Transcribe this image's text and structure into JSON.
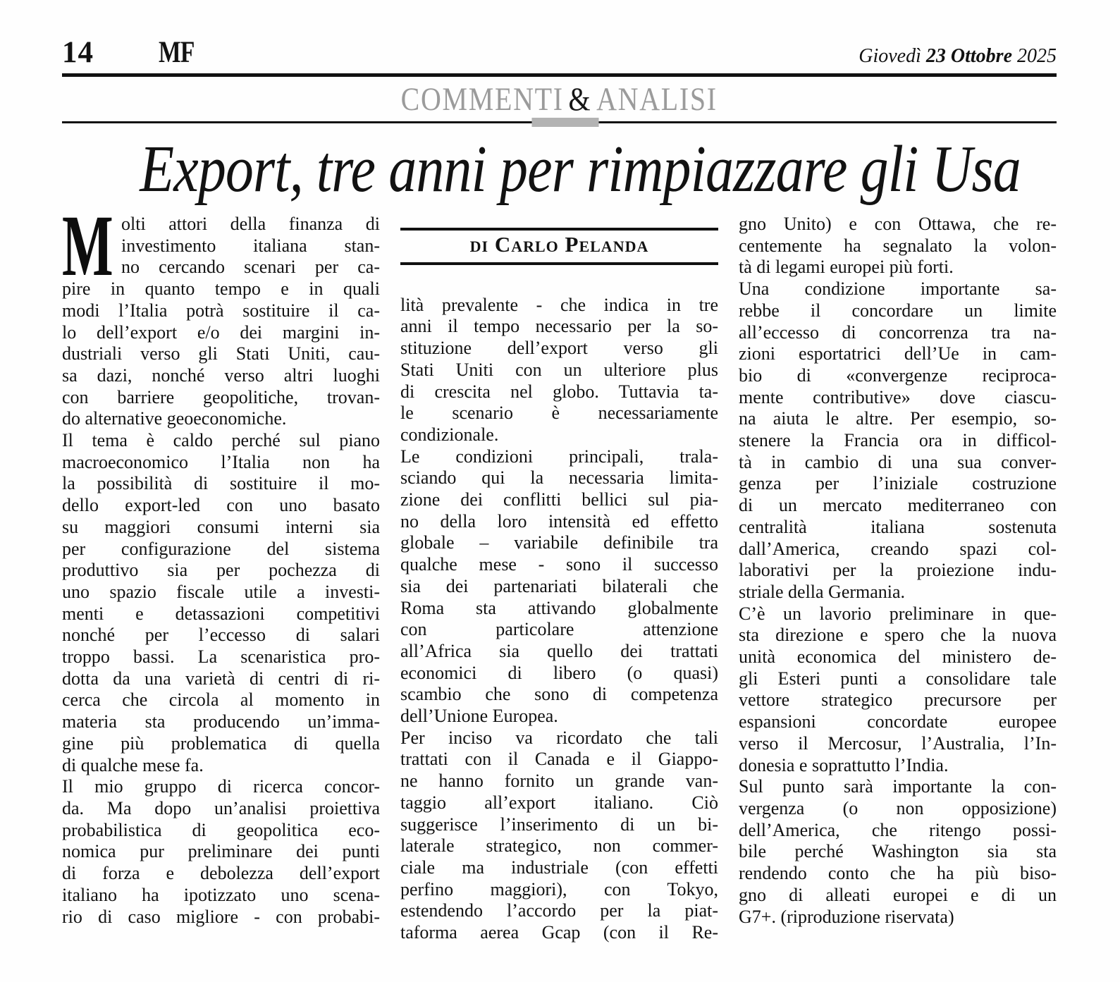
{
  "masthead": {
    "page_number": "14",
    "logo": "MF",
    "date": {
      "weekday": "Giovedì",
      "day_month": "23 Ottobre",
      "year": "2025"
    }
  },
  "section": {
    "left": "COMMENTI",
    "amp": "&",
    "right": "ANALISI"
  },
  "headline": {
    "text": "Export, tre anni per rimpiazzare gli Usa"
  },
  "colors": {
    "section_gray": "#9b9b9b",
    "divider_accent_gray": "#b3b3b3",
    "rule_black": "#111111",
    "text": "#121212",
    "background": "#fefefe"
  },
  "article": {
    "drop_cap": "M",
    "byline": "di Carlo Pelanda",
    "closing": "(riproduzione riservata)",
    "columns": [
      {
        "paragraphs": [
          {
            "end": true,
            "lines": [
              "olti attori della finanza di",
              "investimento italiana stan-",
              "no cercando scenari per ca-",
              "pire in quanto tempo e in quali",
              "modi l’Italia potrà sostituire il ca-",
              "lo dell’export e/o dei margini in-",
              "dustriali verso gli Stati Uniti, cau-",
              "sa dazi, nonché verso altri luoghi",
              "con barriere geopolitiche, trovan-",
              "do alternative geoeconomiche."
            ]
          },
          {
            "end": true,
            "lines": [
              "Il tema è caldo perché sul piano",
              "macroeconomico l’Italia non ha",
              "la possibilità di sostituire il mo-",
              "dello export-led con uno basato",
              "su maggiori consumi interni sia",
              "per configurazione del sistema",
              "produttivo sia per pochezza di",
              "uno spazio fiscale utile a investi-",
              "menti e detassazioni competitivi",
              "nonché per l’eccesso di salari",
              "troppo bassi. La scenaristica pro-",
              "dotta da una varietà di centri di ri-",
              "cerca che circola al momento in",
              "materia sta producendo un’imma-",
              "gine più problematica di quella",
              "di qualche mese fa."
            ]
          },
          {
            "end": false,
            "lines": [
              "Il mio gruppo di ricerca concor-",
              "da. Ma dopo un’analisi proiettiva",
              "probabilistica di geopolitica eco-",
              "nomica pur preliminare dei punti",
              "di forza e debolezza dell’export",
              "italiano ha ipotizzato uno scena-",
              "rio di caso migliore - con probabi-"
            ]
          }
        ]
      },
      {
        "paragraphs": [
          {
            "end": true,
            "lines": [
              "lità prevalente - che indica in tre",
              "anni il tempo necessario per la so-",
              "stituzione dell’export verso gli",
              "Stati Uniti con un ulteriore plus",
              "di crescita nel globo. Tuttavia ta-",
              "le scenario è necessariamente",
              "condizionale."
            ]
          },
          {
            "end": true,
            "lines": [
              "Le condizioni principali, trala-",
              "sciando qui la necessaria limita-",
              "zione dei conflitti bellici sul pia-",
              "no della loro intensità ed effetto",
              "globale – variabile definibile tra",
              "qualche mese - sono il successo",
              "sia dei partenariati bilaterali che",
              "Roma sta attivando globalmente",
              "con particolare attenzione",
              "all’Africa sia quello dei trattati",
              "economici di libero (o quasi)",
              "scambio che sono di competenza",
              "dell’Unione Europea."
            ]
          },
          {
            "end": false,
            "lines": [
              "Per inciso va ricordato che tali",
              "trattati con il Canada e il Giappo-",
              "ne hanno fornito un grande van-",
              "taggio all’export italiano. Ciò",
              "suggerisce l’inserimento di un bi-",
              "laterale strategico, non commer-",
              "ciale ma industriale (con effetti",
              "perfino maggiori), con Tokyo,",
              "estendendo l’accordo per la piat-",
              "taforma aerea Gcap (con il Re-"
            ]
          }
        ]
      },
      {
        "paragraphs": [
          {
            "end": true,
            "lines": [
              "gno Unito) e con Ottawa, che re-",
              "centemente ha segnalato la volon-",
              "tà di legami europei più forti."
            ]
          },
          {
            "end": true,
            "lines": [
              "Una condizione importante sa-",
              "rebbe il concordare un limite",
              "all’eccesso di concorrenza tra na-",
              "zioni esportatrici dell’Ue in cam-",
              "bio di «convergenze reciproca-",
              "mente contributive» dove ciascu-",
              "na aiuta le altre. Per esempio, so-",
              "stenere la Francia ora in difficol-",
              "tà in cambio di una sua conver-",
              "genza per l’iniziale costruzione",
              "di un mercato mediterraneo con",
              "centralità italiana sostenuta",
              "dall’America, creando spazi col-",
              "laborativi per la proiezione indu-",
              "striale della Germania."
            ]
          },
          {
            "end": true,
            "lines": [
              "C’è un lavorio preliminare in que-",
              "sta direzione e spero che la nuova",
              "unità economica del ministero de-",
              "gli Esteri punti a consolidare tale",
              "vettore strategico precursore per",
              "espansioni concordate europee",
              "verso il Mercosur, l’Australia, l’In-",
              "donesia e soprattutto l’India."
            ]
          },
          {
            "end": true,
            "lines": [
              "Sul punto sarà importante la con-",
              "vergenza (o non opposizione)",
              "dell’America, che ritengo possi-",
              "bile perché Washington sia sta",
              "rendendo conto che ha più biso-",
              "gno di alleati europei e di un",
              "G7+. (riproduzione riservata)"
            ]
          }
        ]
      }
    ]
  }
}
